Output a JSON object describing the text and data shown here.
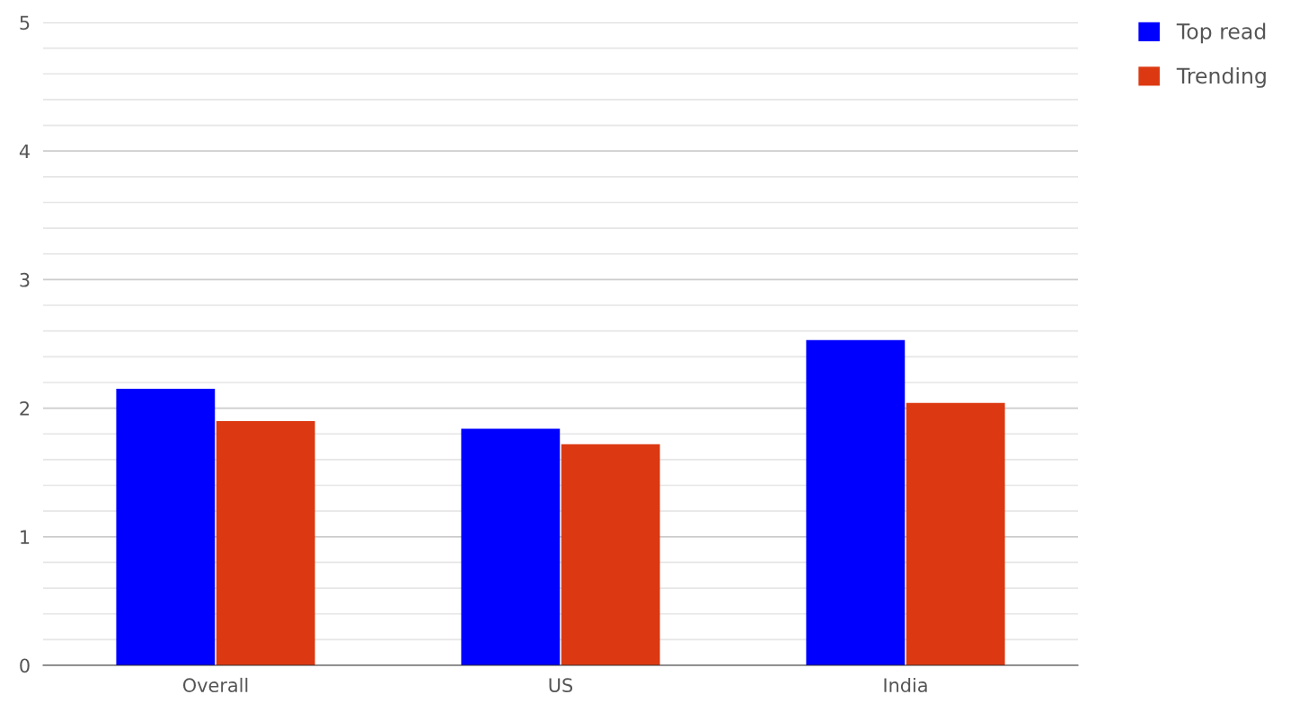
{
  "chart_data": {
    "type": "bar",
    "categories": [
      "Overall",
      "US",
      "India"
    ],
    "series": [
      {
        "name": "Top read",
        "color": "#0000ff",
        "values": [
          2.15,
          1.84,
          2.53
        ]
      },
      {
        "name": "Trending",
        "color": "#dc3912",
        "values": [
          1.9,
          1.72,
          2.04
        ]
      }
    ],
    "ylim": [
      0,
      5
    ],
    "yticks": [
      0,
      {
        "value": 0.2,
        "label": null
      },
      {
        "value": 0.4,
        "label": null
      },
      {
        "value": 0.6,
        "label": null
      },
      {
        "value": 0.8,
        "label": null
      },
      1,
      {
        "value": 1.2,
        "label": null
      },
      {
        "value": 1.4,
        "label": null
      },
      {
        "value": 1.6,
        "label": null
      },
      {
        "value": 1.8,
        "label": null
      },
      2,
      {
        "value": 2.2,
        "label": null
      },
      {
        "value": 2.4,
        "label": null
      },
      {
        "value": 2.6,
        "label": null
      },
      {
        "value": 2.8,
        "label": null
      },
      3,
      {
        "value": 3.2,
        "label": null
      },
      {
        "value": 3.4,
        "label": null
      },
      {
        "value": 3.6,
        "label": null
      },
      {
        "value": 3.8,
        "label": null
      },
      4,
      {
        "value": 4.2,
        "label": null
      },
      {
        "value": 4.4,
        "label": null
      },
      {
        "value": 4.6,
        "label": null
      },
      {
        "value": 4.8,
        "label": null
      },
      5
    ],
    "grid": "y",
    "legend": "top right"
  }
}
